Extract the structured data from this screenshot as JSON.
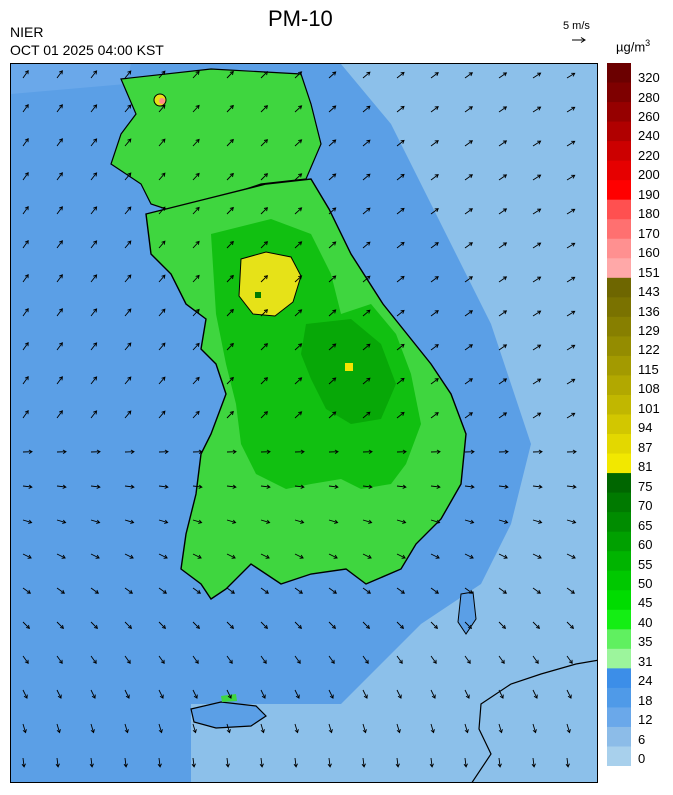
{
  "header": {
    "title": "PM-10",
    "agency": "NIER",
    "timestamp": "OCT 01 2025 04:00 KST",
    "wind_scale": "5 m/s",
    "unit_base": "µg/m",
    "unit_exp": "3"
  },
  "legend": {
    "labels": [
      "320",
      "280",
      "260",
      "240",
      "220",
      "200",
      "190",
      "180",
      "170",
      "160",
      "151",
      "143",
      "136",
      "129",
      "122",
      "115",
      "108",
      "101",
      "94",
      "87",
      "81",
      "75",
      "70",
      "65",
      "60",
      "55",
      "50",
      "45",
      "40",
      "35",
      "31",
      "24",
      "18",
      "12",
      "6",
      "0"
    ],
    "colors": [
      "#6b0000",
      "#7e0000",
      "#960000",
      "#b00000",
      "#cc0000",
      "#e60000",
      "#ff0000",
      "#ff5050",
      "#ff7070",
      "#ff9090",
      "#ffa8a8",
      "#6e6600",
      "#7a7200",
      "#877f00",
      "#948c00",
      "#a39a00",
      "#b2a800",
      "#c1b700",
      "#d2c700",
      "#e3d800",
      "#f2e800",
      "#006600",
      "#007a00",
      "#008c00",
      "#00a000",
      "#00b400",
      "#00c800",
      "#00dc00",
      "#14ee14",
      "#60f060",
      "#9cf59c",
      "#3c8ee8",
      "#4f9ae8",
      "#6aa8ea",
      "#8cbce8",
      "#a8d0ec"
    ]
  },
  "map_colors": {
    "sea": "#5b9fe6",
    "outer_sea": "#8cc0ea",
    "land_light": "#3fd63f",
    "land_mid": "#11c011",
    "land_dark": "#07a807",
    "hot_yellow": "#e6e218",
    "marker": "#f4e400",
    "pink": "#ff8888"
  }
}
